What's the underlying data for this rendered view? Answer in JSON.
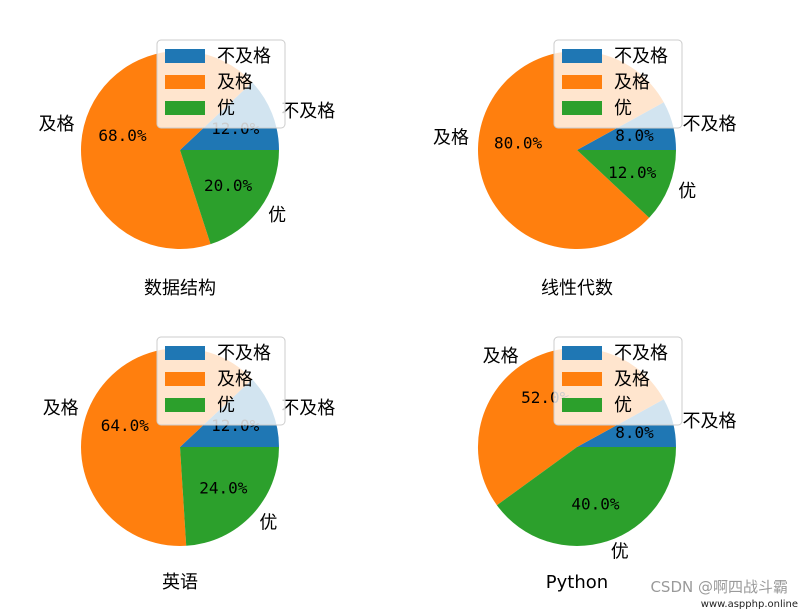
{
  "colors": {
    "fail": "#1f77b4",
    "pass": "#ff7f0e",
    "excellent": "#2ca02c"
  },
  "chart_data": [
    {
      "type": "pie",
      "title": "数据结构",
      "slices": [
        {
          "label": "不及格",
          "value": 12.0,
          "pct": "12.0%"
        },
        {
          "label": "及格",
          "value": 68.0,
          "pct": "68.0%"
        },
        {
          "label": "优",
          "value": 20.0,
          "pct": "20.0%"
        }
      ],
      "legend": [
        "不及格",
        "及格",
        "优"
      ],
      "legend_position": "upper-right"
    },
    {
      "type": "pie",
      "title": "线性代数",
      "slices": [
        {
          "label": "不及格",
          "value": 8.0,
          "pct": "8.0%"
        },
        {
          "label": "及格",
          "value": 80.0,
          "pct": "80.0%"
        },
        {
          "label": "优",
          "value": 12.0,
          "pct": "12.0%"
        }
      ],
      "legend": [
        "不及格",
        "及格",
        "优"
      ],
      "legend_position": "upper-right"
    },
    {
      "type": "pie",
      "title": "英语",
      "slices": [
        {
          "label": "不及格",
          "value": 12.0,
          "pct": "12.0%"
        },
        {
          "label": "及格",
          "value": 64.0,
          "pct": "64.0%"
        },
        {
          "label": "优",
          "value": 24.0,
          "pct": "24.0%"
        }
      ],
      "legend": [
        "不及格",
        "及格",
        "优"
      ],
      "legend_position": "upper-right"
    },
    {
      "type": "pie",
      "title": "Python",
      "slices": [
        {
          "label": "不及格",
          "value": 8.0,
          "pct": "8.0%"
        },
        {
          "label": "及格",
          "value": 52.0,
          "pct": "52.0%"
        },
        {
          "label": "优",
          "value": 40.0,
          "pct": "40.0%"
        }
      ],
      "legend": [
        "不及格",
        "及格",
        "优"
      ],
      "legend_position": "upper-right"
    }
  ],
  "watermark": {
    "text": "CSDN @啊四战斗霸",
    "subtext": "www.aspphp.online"
  }
}
